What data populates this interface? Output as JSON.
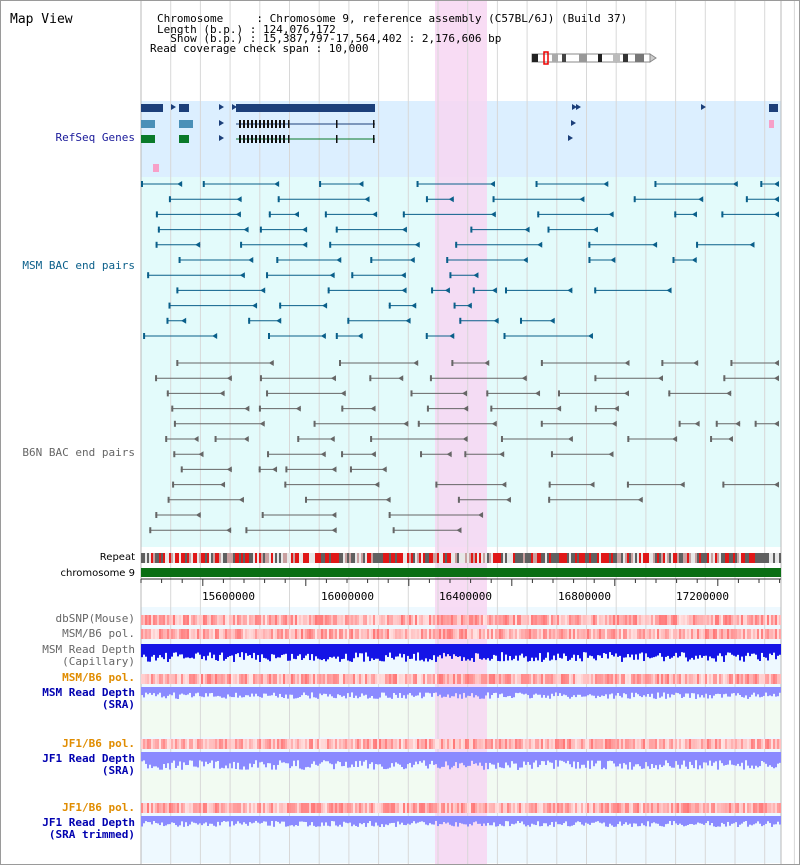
{
  "view": {
    "title": "Map View"
  },
  "info": {
    "line1": "Chromosome     : Chromosome 9, reference assembly (C57BL/6J) (Build 37)",
    "line2": "Length (b.p.) : 124,076,172",
    "line3": "  Show (b.p.) : 15,387,797-17,564,402 : 2,176,606 bp",
    "line4": "Read coverage check span : 10,000"
  },
  "tracks": {
    "refseq": "RefSeq Genes",
    "msm_bac": "MSM BAC end pairs",
    "b6n_bac": "B6N BAC end pairs",
    "repeat": "Repeat",
    "chromosome": "chromosome 9",
    "dbsnp": "dbSNP(Mouse)",
    "msm_b6_pol1": "MSM/B6 pol.",
    "msm_depth_cap_1": "MSM Read Depth",
    "msm_depth_cap_2": "(Capillary)",
    "msm_b6_pol2": "MSM/B6 pol.",
    "msm_depth_sra_1": "MSM Read Depth",
    "msm_depth_sra_2": "(SRA)",
    "jf1_pol1": "JF1/B6 pol.",
    "jf1_depth_1": "JF1 Read Depth",
    "jf1_depth_2": "(SRA)",
    "jf1_pol2": "JF1/B6 pol.",
    "jf1_trim_1": "JF1 Read Depth",
    "jf1_trim_2": "(SRA trimmed)"
  },
  "axis": {
    "ticks": [
      "15600000",
      "16000000",
      "16400000",
      "16800000",
      "17200000"
    ]
  },
  "colors": {
    "refseq_band": "#dcefff",
    "bac_band": "#e3fbfb",
    "highlight": "#f7d6f2",
    "lower_band": "#eef9ff",
    "bac_msm": "#0a5f8a",
    "bac_b6n": "#666666",
    "gene_navy": "#1c3f7a",
    "gene_green": "#0a7a2a",
    "chromosome": "#0a6e14",
    "depth_capillary": "#1414e6",
    "depth_sra": "#8a8aff"
  }
}
